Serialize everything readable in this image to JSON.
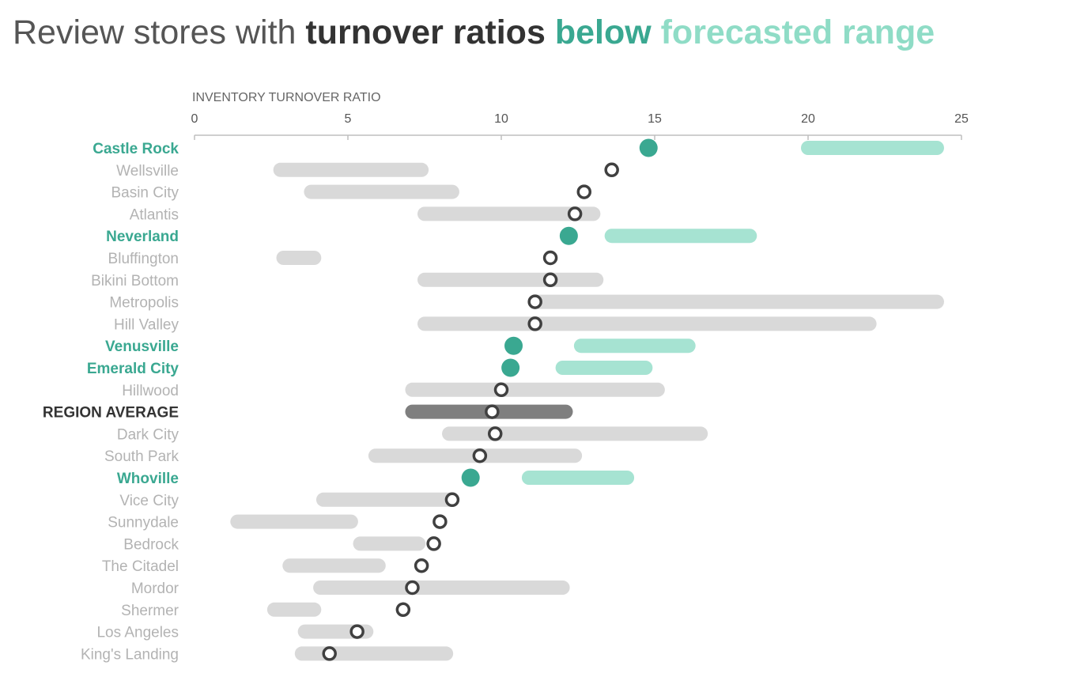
{
  "title": {
    "part1": "Review stores with ",
    "part2": "turnover ratios ",
    "part3": "below ",
    "part4": "forecasted range"
  },
  "colors": {
    "highlight": "#3aa891",
    "highlight_range": "#a6e3d2",
    "neutral_range": "#d9d9d9",
    "average_range": "#7f7f7f",
    "marker_stroke": "#404040",
    "label_neutral": "#b3b3b3",
    "label_average": "#333333"
  },
  "chart_data": {
    "type": "dot-range",
    "xlabel": "INVENTORY TURNOVER RATIO",
    "xlim": [
      0,
      25
    ],
    "xticks": [
      0,
      5,
      10,
      15,
      20,
      25
    ],
    "rows": [
      {
        "label": "Castle Rock",
        "value": 14.8,
        "range": [
          20.0,
          24.2
        ],
        "status": "below"
      },
      {
        "label": "Wellsville",
        "value": 13.6,
        "range": [
          2.8,
          7.4
        ],
        "status": "normal"
      },
      {
        "label": "Basin City",
        "value": 12.7,
        "range": [
          3.8,
          8.4
        ],
        "status": "normal"
      },
      {
        "label": "Atlantis",
        "value": 12.4,
        "range": [
          7.5,
          13.0
        ],
        "status": "normal"
      },
      {
        "label": "Neverland",
        "value": 12.2,
        "range": [
          13.6,
          18.1
        ],
        "status": "below"
      },
      {
        "label": "Bluffington",
        "value": 11.6,
        "range": [
          2.9,
          3.9
        ],
        "status": "normal"
      },
      {
        "label": "Bikini Bottom",
        "value": 11.6,
        "range": [
          7.5,
          13.1
        ],
        "status": "normal"
      },
      {
        "label": "Metropolis",
        "value": 11.1,
        "range": [
          11.1,
          24.2
        ],
        "status": "normal"
      },
      {
        "label": "Hill Valley",
        "value": 11.1,
        "range": [
          7.5,
          22.0
        ],
        "status": "normal"
      },
      {
        "label": "Venusville",
        "value": 10.4,
        "range": [
          12.6,
          16.1
        ],
        "status": "below"
      },
      {
        "label": "Emerald City",
        "value": 10.3,
        "range": [
          12.0,
          14.7
        ],
        "status": "below"
      },
      {
        "label": "Hillwood",
        "value": 10.0,
        "range": [
          7.1,
          15.1
        ],
        "status": "normal"
      },
      {
        "label": "REGION AVERAGE",
        "value": 9.7,
        "range": [
          7.1,
          12.1
        ],
        "status": "average"
      },
      {
        "label": "Dark City",
        "value": 9.8,
        "range": [
          8.3,
          16.5
        ],
        "status": "normal"
      },
      {
        "label": "South Park",
        "value": 9.3,
        "range": [
          5.9,
          12.4
        ],
        "status": "normal"
      },
      {
        "label": "Whoville",
        "value": 9.0,
        "range": [
          10.9,
          14.1
        ],
        "status": "below"
      },
      {
        "label": "Vice City",
        "value": 8.4,
        "range": [
          4.2,
          8.4
        ],
        "status": "normal"
      },
      {
        "label": "Sunnydale",
        "value": 8.0,
        "range": [
          1.4,
          5.1
        ],
        "status": "normal"
      },
      {
        "label": "Bedrock",
        "value": 7.8,
        "range": [
          5.4,
          7.3
        ],
        "status": "normal"
      },
      {
        "label": "The Citadel",
        "value": 7.4,
        "range": [
          3.1,
          6.0
        ],
        "status": "normal"
      },
      {
        "label": "Mordor",
        "value": 7.1,
        "range": [
          4.1,
          12.0
        ],
        "status": "normal"
      },
      {
        "label": "Shermer",
        "value": 6.8,
        "range": [
          2.6,
          3.9
        ],
        "status": "normal"
      },
      {
        "label": "Los Angeles",
        "value": 5.3,
        "range": [
          3.6,
          5.6
        ],
        "status": "normal"
      },
      {
        "label": "King's Landing",
        "value": 4.4,
        "range": [
          3.5,
          8.2
        ],
        "status": "normal"
      }
    ]
  }
}
